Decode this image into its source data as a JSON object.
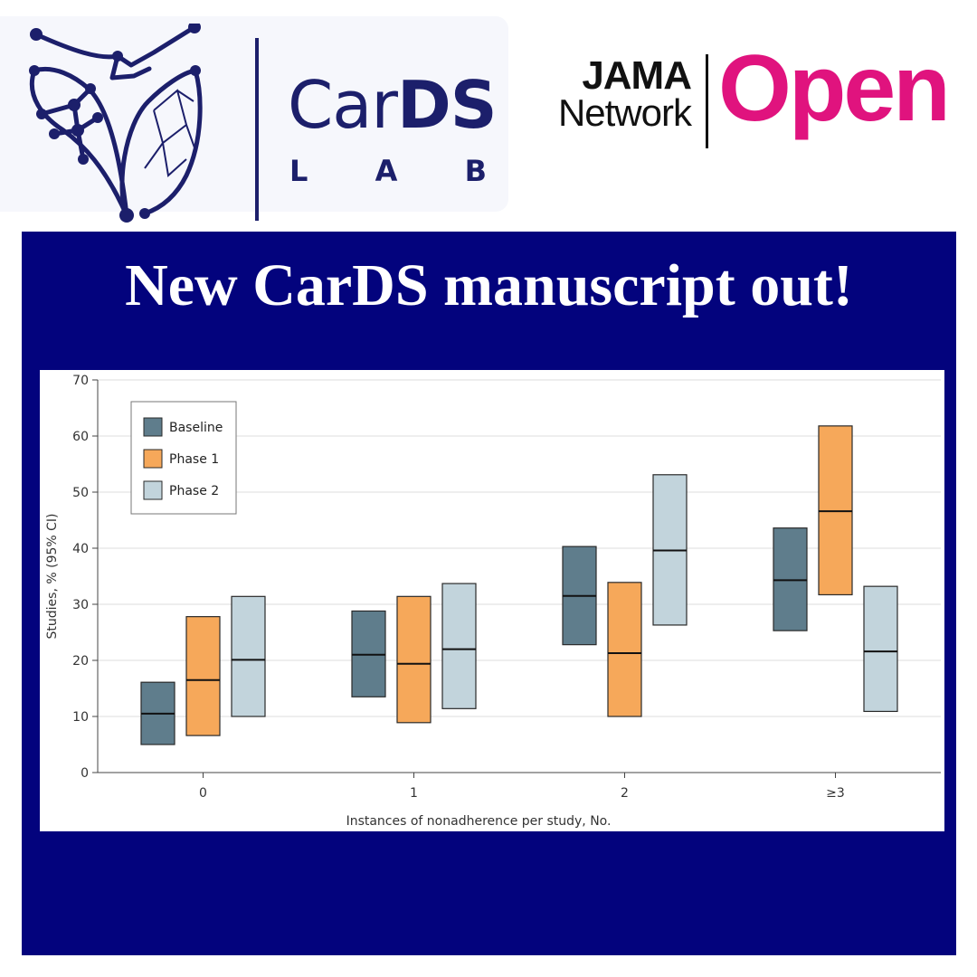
{
  "brand": {
    "cards_thin": "Car",
    "cards_bold": "DS",
    "lab_letters": [
      "L",
      "A",
      "B"
    ],
    "jama_line1": "JAMA",
    "jama_line2": "Network",
    "jama_open": "Open",
    "navy": "#1c1f6b",
    "magenta": "#e0137e"
  },
  "banner": {
    "headline": "New CarDS manuscript out!",
    "background": "#03037d"
  },
  "chart_data": {
    "type": "bar",
    "subtype": "floating-interval-bar-with-point-estimate",
    "xlabel": "Instances of nonadherence per study, No.",
    "ylabel": "Studies, % (95% CI)",
    "ylim": [
      0,
      70
    ],
    "yticks": [
      0,
      10,
      20,
      30,
      40,
      50,
      60,
      70
    ],
    "grid": true,
    "legend_position": "top-left",
    "categories": [
      "0",
      "1",
      "2",
      "≥3"
    ],
    "series": [
      {
        "name": "Baseline",
        "color": "#5f7d8c",
        "estimate": [
          10.5,
          21,
          31.5,
          34.3
        ],
        "lower": [
          5,
          13.5,
          22.8,
          25.3
        ],
        "upper": [
          16.1,
          28.8,
          40.3,
          43.6
        ]
      },
      {
        "name": "Phase 1",
        "color": "#f6a85a",
        "estimate": [
          16.5,
          19.4,
          21.3,
          46.6
        ],
        "lower": [
          6.6,
          8.9,
          10,
          31.7
        ],
        "upper": [
          27.8,
          31.4,
          33.9,
          61.8
        ]
      },
      {
        "name": "Phase 2",
        "color": "#c2d4dc",
        "estimate": [
          20.1,
          22,
          39.6,
          21.6
        ],
        "lower": [
          10,
          11.4,
          26.3,
          10.9
        ],
        "upper": [
          31.4,
          33.7,
          53.1,
          33.2
        ]
      }
    ]
  }
}
